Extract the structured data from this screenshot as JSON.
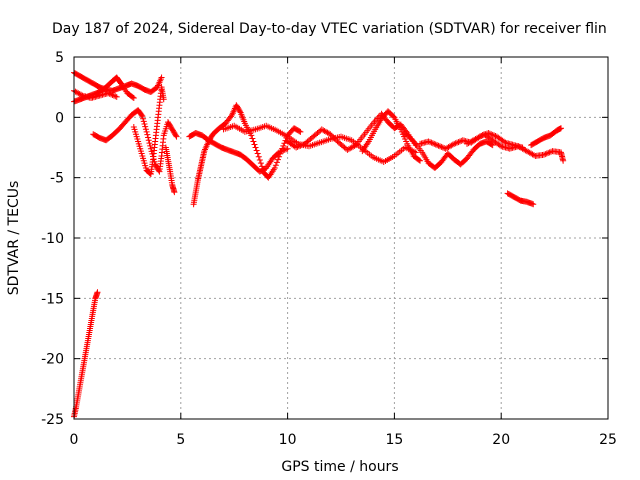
{
  "chart_data": {
    "type": "scatter",
    "title": "Day 187 of 2024, Sidereal Day-to-day VTEC variation (SDTVAR) for receiver flin",
    "xlabel": "GPS time / hours",
    "ylabel": "SDTVAR / TECUs",
    "xlim": [
      0,
      25
    ],
    "ylim": [
      -25,
      5
    ],
    "xticks": [
      0,
      5,
      10,
      15,
      20,
      25
    ],
    "yticks": [
      5,
      0,
      -5,
      -10,
      -15,
      -20,
      -25
    ],
    "grid": true,
    "marker": "plus",
    "color": "#ff0000",
    "series": [
      {
        "values": [
          [
            0.0,
            -24.8
          ],
          [
            0.1,
            -24.0
          ],
          [
            0.2,
            -23.0
          ],
          [
            0.3,
            -22.0
          ],
          [
            0.4,
            -21.0
          ],
          [
            0.5,
            -20.0
          ],
          [
            0.6,
            -19.0
          ],
          [
            0.7,
            -18.0
          ],
          [
            0.8,
            -17.0
          ],
          [
            0.9,
            -16.0
          ],
          [
            1.0,
            -15.0
          ],
          [
            1.1,
            -14.5
          ]
        ]
      },
      {
        "values": [
          [
            0.0,
            3.7
          ],
          [
            0.3,
            3.4
          ],
          [
            0.6,
            3.1
          ],
          [
            0.9,
            2.8
          ],
          [
            1.2,
            2.5
          ],
          [
            1.5,
            2.3
          ],
          [
            1.8,
            2.2
          ],
          [
            2.1,
            2.4
          ],
          [
            2.4,
            2.6
          ],
          [
            2.7,
            2.8
          ],
          [
            3.0,
            2.6
          ],
          [
            3.3,
            2.3
          ],
          [
            3.6,
            2.1
          ],
          [
            3.9,
            2.5
          ],
          [
            4.1,
            3.3
          ]
        ]
      },
      {
        "values": [
          [
            0.0,
            1.3
          ],
          [
            0.3,
            1.5
          ],
          [
            0.6,
            1.7
          ],
          [
            0.9,
            1.9
          ],
          [
            1.2,
            2.1
          ],
          [
            1.5,
            2.5
          ],
          [
            1.8,
            3.0
          ],
          [
            2.0,
            3.3
          ],
          [
            2.2,
            2.8
          ],
          [
            2.5,
            2.0
          ],
          [
            2.8,
            1.6
          ]
        ]
      },
      {
        "values": [
          [
            0.0,
            2.2
          ],
          [
            0.4,
            1.8
          ],
          [
            0.8,
            1.6
          ],
          [
            1.2,
            1.8
          ],
          [
            1.6,
            2.0
          ],
          [
            2.0,
            1.7
          ]
        ]
      },
      {
        "values": [
          [
            0.9,
            -1.4
          ],
          [
            1.2,
            -1.7
          ],
          [
            1.5,
            -1.9
          ],
          [
            1.8,
            -1.5
          ],
          [
            2.1,
            -1.0
          ],
          [
            2.4,
            -0.4
          ],
          [
            2.7,
            0.2
          ],
          [
            3.0,
            0.6
          ],
          [
            3.2,
            0.1
          ],
          [
            3.4,
            -1.2
          ],
          [
            3.6,
            -2.6
          ],
          [
            3.8,
            -3.9
          ],
          [
            4.0,
            -4.5
          ],
          [
            4.1,
            -3.2
          ],
          [
            4.2,
            -1.5
          ],
          [
            4.4,
            -0.4
          ],
          [
            4.6,
            -1.0
          ],
          [
            4.8,
            -1.6
          ]
        ]
      },
      {
        "values": [
          [
            2.8,
            -0.8
          ],
          [
            3.0,
            -2.0
          ],
          [
            3.2,
            -3.2
          ],
          [
            3.4,
            -4.4
          ],
          [
            3.6,
            -4.7
          ],
          [
            3.7,
            -3.5
          ],
          [
            3.8,
            -2.0
          ],
          [
            3.9,
            -0.5
          ],
          [
            4.0,
            1.0
          ],
          [
            4.1,
            2.5
          ],
          [
            4.2,
            1.5
          ]
        ]
      },
      {
        "values": [
          [
            4.3,
            -2.5
          ],
          [
            4.4,
            -3.5
          ],
          [
            4.5,
            -4.5
          ],
          [
            4.6,
            -5.6
          ],
          [
            4.7,
            -6.2
          ]
        ]
      },
      {
        "values": [
          [
            5.6,
            -7.2
          ],
          [
            5.7,
            -6.2
          ],
          [
            5.8,
            -5.2
          ],
          [
            5.9,
            -4.4
          ],
          [
            6.0,
            -3.6
          ],
          [
            6.1,
            -2.8
          ],
          [
            6.3,
            -2.0
          ],
          [
            6.5,
            -1.4
          ],
          [
            6.8,
            -0.9
          ],
          [
            7.1,
            -0.5
          ],
          [
            7.4,
            0.2
          ],
          [
            7.6,
            1.0
          ],
          [
            7.8,
            0.4
          ],
          [
            8.0,
            -0.5
          ],
          [
            8.3,
            -1.5
          ],
          [
            8.6,
            -3.0
          ],
          [
            8.9,
            -4.6
          ],
          [
            9.1,
            -5.0
          ],
          [
            9.4,
            -4.2
          ],
          [
            9.7,
            -2.8
          ],
          [
            10.0,
            -1.5
          ],
          [
            10.3,
            -0.9
          ],
          [
            10.6,
            -1.2
          ]
        ]
      },
      {
        "values": [
          [
            5.4,
            -1.6
          ],
          [
            5.7,
            -1.3
          ],
          [
            6.0,
            -1.5
          ],
          [
            6.3,
            -1.9
          ],
          [
            6.6,
            -2.2
          ],
          [
            6.9,
            -2.5
          ],
          [
            7.2,
            -2.7
          ],
          [
            7.5,
            -2.9
          ],
          [
            7.8,
            -3.1
          ],
          [
            8.1,
            -3.5
          ],
          [
            8.4,
            -4.0
          ],
          [
            8.7,
            -4.5
          ],
          [
            9.0,
            -4.2
          ],
          [
            9.3,
            -3.4
          ],
          [
            9.6,
            -2.9
          ],
          [
            10.0,
            -2.6
          ]
        ]
      },
      {
        "values": [
          [
            7.0,
            -1.0
          ],
          [
            7.5,
            -0.7
          ],
          [
            8.0,
            -1.2
          ],
          [
            8.5,
            -1.0
          ],
          [
            9.0,
            -0.7
          ],
          [
            9.5,
            -1.1
          ],
          [
            10.0,
            -1.6
          ],
          [
            10.5,
            -2.2
          ],
          [
            11.0,
            -2.4
          ],
          [
            11.5,
            -2.1
          ],
          [
            12.0,
            -1.8
          ],
          [
            12.5,
            -1.6
          ],
          [
            13.0,
            -1.9
          ],
          [
            13.5,
            -2.6
          ],
          [
            14.0,
            -3.3
          ],
          [
            14.5,
            -3.7
          ],
          [
            15.0,
            -3.2
          ],
          [
            15.5,
            -2.5
          ],
          [
            16.0,
            -2.9
          ]
        ]
      },
      {
        "values": [
          [
            10.0,
            -2.0
          ],
          [
            10.4,
            -2.5
          ],
          [
            10.8,
            -2.2
          ],
          [
            11.2,
            -1.6
          ],
          [
            11.6,
            -1.0
          ],
          [
            12.0,
            -1.4
          ],
          [
            12.4,
            -2.1
          ],
          [
            12.8,
            -2.7
          ],
          [
            13.2,
            -2.3
          ],
          [
            13.6,
            -1.4
          ],
          [
            14.0,
            -0.5
          ],
          [
            14.4,
            0.3
          ],
          [
            14.7,
            -0.4
          ],
          [
            15.0,
            -0.9
          ],
          [
            15.3,
            -0.6
          ],
          [
            15.6,
            -1.3
          ],
          [
            16.0,
            -2.3
          ]
        ]
      },
      {
        "values": [
          [
            13.5,
            -2.8
          ],
          [
            13.8,
            -2.0
          ],
          [
            14.1,
            -1.0
          ],
          [
            14.4,
            -0.1
          ],
          [
            14.7,
            0.5
          ],
          [
            15.0,
            0.0
          ],
          [
            15.3,
            -1.0
          ],
          [
            15.6,
            -2.2
          ],
          [
            15.9,
            -3.2
          ],
          [
            16.2,
            -3.6
          ]
        ]
      },
      {
        "values": [
          [
            15.5,
            -1.3
          ],
          [
            15.9,
            -2.0
          ],
          [
            16.3,
            -2.9
          ],
          [
            16.6,
            -3.8
          ],
          [
            16.9,
            -4.2
          ],
          [
            17.2,
            -3.7
          ],
          [
            17.5,
            -3.0
          ],
          [
            17.8,
            -3.5
          ],
          [
            18.1,
            -3.9
          ],
          [
            18.4,
            -3.4
          ],
          [
            18.7,
            -2.7
          ],
          [
            19.0,
            -2.2
          ],
          [
            19.3,
            -2.0
          ],
          [
            19.6,
            -2.3
          ]
        ]
      },
      {
        "values": [
          [
            16.2,
            -2.2
          ],
          [
            16.6,
            -2.0
          ],
          [
            17.0,
            -2.3
          ],
          [
            17.4,
            -2.6
          ],
          [
            17.8,
            -2.2
          ],
          [
            18.2,
            -1.9
          ],
          [
            18.6,
            -2.1
          ],
          [
            19.0,
            -1.6
          ],
          [
            19.4,
            -1.3
          ],
          [
            19.8,
            -1.6
          ],
          [
            20.2,
            -2.1
          ],
          [
            20.6,
            -2.3
          ],
          [
            21.0,
            -2.5
          ]
        ]
      },
      {
        "values": [
          [
            18.4,
            -2.2
          ],
          [
            18.8,
            -1.8
          ],
          [
            19.2,
            -1.4
          ],
          [
            19.6,
            -1.9
          ],
          [
            20.0,
            -2.4
          ],
          [
            20.4,
            -2.6
          ],
          [
            20.8,
            -2.4
          ],
          [
            21.2,
            -2.8
          ],
          [
            21.6,
            -3.2
          ],
          [
            22.0,
            -3.1
          ],
          [
            22.4,
            -2.8
          ],
          [
            22.8,
            -2.9
          ],
          [
            22.9,
            -3.6
          ]
        ]
      },
      {
        "values": [
          [
            21.4,
            -2.3
          ],
          [
            21.7,
            -2.0
          ],
          [
            22.0,
            -1.7
          ],
          [
            22.3,
            -1.5
          ],
          [
            22.6,
            -1.1
          ],
          [
            22.8,
            -0.9
          ]
        ]
      },
      {
        "values": [
          [
            20.3,
            -6.3
          ],
          [
            20.6,
            -6.6
          ],
          [
            20.9,
            -6.9
          ],
          [
            21.2,
            -7.0
          ],
          [
            21.5,
            -7.2
          ]
        ]
      }
    ]
  }
}
